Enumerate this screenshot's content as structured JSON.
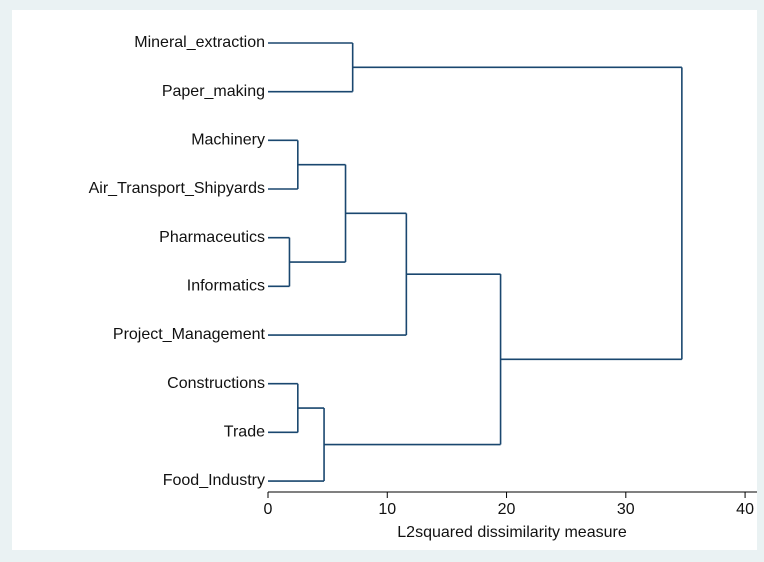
{
  "chart_data": {
    "type": "dendrogram",
    "x_label": "L2squared dissimilarity measure",
    "xlim": [
      0,
      41
    ],
    "xticks": [
      0,
      10,
      20,
      30,
      40
    ],
    "color": "#1a476f",
    "tree": {
      "height": 34.7,
      "children": [
        {
          "height": 7.1,
          "children": [
            "Mineral_extraction",
            "Paper_making"
          ]
        },
        {
          "height": 19.5,
          "children": [
            {
              "height": 11.6,
              "children": [
                {
                  "height": 6.5,
                  "children": [
                    {
                      "height": 2.5,
                      "children": [
                        "Machinery",
                        "Air_Transport_Shipyards"
                      ]
                    },
                    {
                      "height": 1.8,
                      "children": [
                        "Pharmaceutics",
                        "Informatics"
                      ]
                    }
                  ]
                },
                "Project_Management"
              ]
            },
            {
              "height": 4.7,
              "children": [
                {
                  "height": 2.5,
                  "children": [
                    "Constructions",
                    "Trade"
                  ]
                },
                "Food_Industry"
              ]
            }
          ]
        }
      ]
    }
  }
}
